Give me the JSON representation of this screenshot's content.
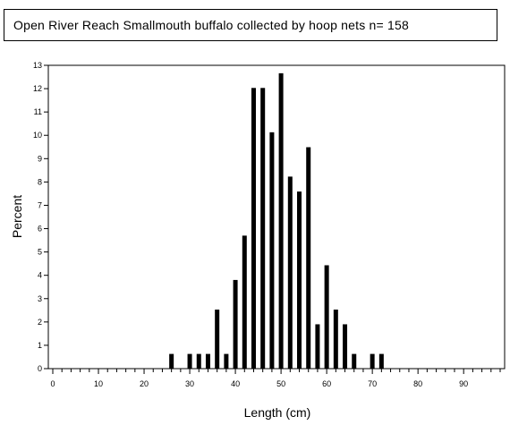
{
  "chart_data": {
    "type": "bar",
    "title": "Open River Reach Smallmouth buffalo collected by hoop nets   n= 158",
    "xlabel": "Length (cm)",
    "ylabel": "Percent",
    "xlim": [
      0,
      98
    ],
    "ylim": [
      0,
      13
    ],
    "x_ticks": [
      0,
      10,
      20,
      30,
      40,
      50,
      60,
      70,
      80,
      90
    ],
    "y_ticks": [
      0,
      1,
      2,
      3,
      4,
      5,
      6,
      7,
      8,
      9,
      10,
      11,
      12,
      13
    ],
    "x": [
      26,
      30,
      32,
      34,
      36,
      38,
      40,
      42,
      44,
      46,
      48,
      50,
      52,
      54,
      56,
      58,
      60,
      62,
      64,
      66,
      70,
      72
    ],
    "values": [
      0.63,
      0.63,
      0.63,
      0.63,
      2.53,
      0.63,
      3.8,
      5.7,
      12.03,
      12.03,
      10.13,
      12.66,
      8.23,
      7.59,
      9.49,
      1.9,
      4.43,
      2.53,
      1.9,
      0.63,
      0.63,
      0.63
    ],
    "color": "#000000",
    "grid": false
  }
}
